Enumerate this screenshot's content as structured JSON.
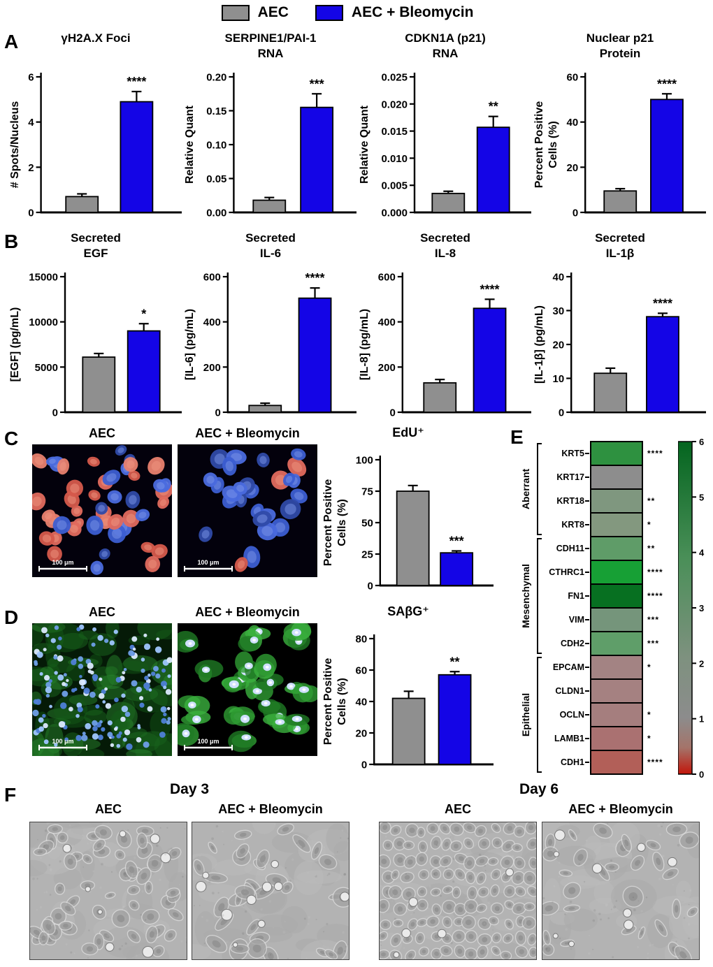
{
  "figure": {
    "panel_labels": {
      "A": "A",
      "B": "B",
      "C": "C",
      "D": "D",
      "E": "E",
      "F": "F"
    }
  },
  "legend": {
    "items": [
      {
        "key": "aec",
        "label": "AEC"
      },
      {
        "key": "bleo",
        "label": "AEC + Bleomycin"
      }
    ]
  },
  "colors": {
    "aec": "#8f8f8f",
    "bleo": "#1405e6",
    "axis": "#000000"
  },
  "chart_data": [
    {
      "id": "gh2ax-foci",
      "panel": "A",
      "type": "bar",
      "title_lines": [
        "γH2A.X Foci"
      ],
      "ylabel_lines": [
        "# Spots/Nucleus"
      ],
      "categories": [
        "AEC",
        "AEC + Bleomycin"
      ],
      "values": [
        0.7,
        4.9
      ],
      "errors": [
        0.12,
        0.45
      ],
      "significance": "****",
      "ylim": [
        0,
        6
      ],
      "yticks": [
        0,
        2,
        4,
        6
      ],
      "ytick_labels": [
        "0",
        "2",
        "4",
        "6"
      ]
    },
    {
      "id": "serpine1-pai1-rna",
      "panel": "A",
      "type": "bar",
      "title_lines": [
        "SERPINE1/PAI-1",
        "RNA"
      ],
      "ylabel_lines": [
        "Relative Quant"
      ],
      "categories": [
        "AEC",
        "AEC + Bleomycin"
      ],
      "values": [
        0.018,
        0.155
      ],
      "errors": [
        0.004,
        0.02
      ],
      "significance": "***",
      "ylim": [
        0,
        0.2
      ],
      "yticks": [
        0,
        0.05,
        0.1,
        0.15,
        0.2
      ],
      "ytick_labels": [
        "0.00",
        "0.05",
        "0.10",
        "0.15",
        "0.20"
      ]
    },
    {
      "id": "cdkn1a-p21-rna",
      "panel": "A",
      "type": "bar",
      "title_lines": [
        "CDKN1A (p21)",
        "RNA"
      ],
      "ylabel_lines": [
        "Relative Quant"
      ],
      "categories": [
        "AEC",
        "AEC + Bleomycin"
      ],
      "values": [
        0.0035,
        0.0157
      ],
      "errors": [
        0.0004,
        0.002
      ],
      "significance": "**",
      "ylim": [
        0,
        0.025
      ],
      "yticks": [
        0,
        0.005,
        0.01,
        0.015,
        0.02,
        0.025
      ],
      "ytick_labels": [
        "0.000",
        "0.005",
        "0.010",
        "0.015",
        "0.020",
        "0.025"
      ]
    },
    {
      "id": "nuclear-p21-protein",
      "panel": "A",
      "type": "bar",
      "title_lines": [
        "Nuclear p21",
        "Protein"
      ],
      "ylabel_lines": [
        "Percent Positive",
        "Cells (%)"
      ],
      "categories": [
        "AEC",
        "AEC + Bleomycin"
      ],
      "values": [
        9.5,
        50
      ],
      "errors": [
        1,
        2.5
      ],
      "significance": "****",
      "ylim": [
        0,
        60
      ],
      "yticks": [
        0,
        20,
        40,
        60
      ],
      "ytick_labels": [
        "0",
        "20",
        "40",
        "60"
      ]
    },
    {
      "id": "secreted-egf",
      "panel": "B",
      "type": "bar",
      "title_lines": [
        "Secreted",
        "EGF"
      ],
      "ylabel_lines": [
        "[EGF] (pg/mL)"
      ],
      "categories": [
        "AEC",
        "AEC + Bleomycin"
      ],
      "values": [
        6100,
        9000
      ],
      "errors": [
        400,
        800
      ],
      "significance": "*",
      "ylim": [
        0,
        15000
      ],
      "yticks": [
        0,
        5000,
        10000,
        15000
      ],
      "ytick_labels": [
        "0",
        "5000",
        "10000",
        "15000"
      ]
    },
    {
      "id": "secreted-il6",
      "panel": "B",
      "type": "bar",
      "title_lines": [
        "Secreted",
        "IL-6"
      ],
      "ylabel_lines": [
        "[IL-6] (pg/mL)"
      ],
      "categories": [
        "AEC",
        "AEC + Bleomycin"
      ],
      "values": [
        30,
        505
      ],
      "errors": [
        10,
        45
      ],
      "significance": "****",
      "ylim": [
        0,
        600
      ],
      "yticks": [
        0,
        200,
        400,
        600
      ],
      "ytick_labels": [
        "0",
        "200",
        "400",
        "600"
      ]
    },
    {
      "id": "secreted-il8",
      "panel": "B",
      "type": "bar",
      "title_lines": [
        "Secreted",
        "IL-8"
      ],
      "ylabel_lines": [
        "[IL-8] (pg/mL)"
      ],
      "categories": [
        "AEC",
        "AEC + Bleomycin"
      ],
      "values": [
        130,
        460
      ],
      "errors": [
        15,
        40
      ],
      "significance": "****",
      "ylim": [
        0,
        600
      ],
      "yticks": [
        0,
        200,
        400,
        600
      ],
      "ytick_labels": [
        "0",
        "200",
        "400",
        "600"
      ]
    },
    {
      "id": "secreted-il1b",
      "panel": "B",
      "type": "bar",
      "title_lines": [
        "Secreted",
        "IL-1β"
      ],
      "ylabel_lines": [
        "[IL-1β] (pg/mL)"
      ],
      "categories": [
        "AEC",
        "AEC + Bleomycin"
      ],
      "values": [
        11.5,
        28.2
      ],
      "errors": [
        1.5,
        1
      ],
      "significance": "****",
      "ylim": [
        0,
        40
      ],
      "yticks": [
        0,
        10,
        20,
        30,
        40
      ],
      "ytick_labels": [
        "0",
        "10",
        "20",
        "30",
        "40"
      ]
    },
    {
      "id": "edu-positive",
      "panel": "C",
      "type": "bar",
      "title_lines": [
        "EdU⁺"
      ],
      "ylabel_lines": [
        "Percent Positive",
        "Cells (%)"
      ],
      "categories": [
        "AEC",
        "AEC + Bleomycin"
      ],
      "values": [
        75,
        26
      ],
      "errors": [
        4.5,
        1.5
      ],
      "significance": "***",
      "ylim": [
        0,
        100
      ],
      "yticks": [
        0,
        25,
        50,
        75,
        100
      ],
      "ytick_labels": [
        "0",
        "25",
        "50",
        "75",
        "100"
      ]
    },
    {
      "id": "sabg-positive",
      "panel": "D",
      "type": "bar",
      "title_lines": [
        "SAβG⁺"
      ],
      "ylabel_lines": [
        "Percent Positive",
        "Cells (%)"
      ],
      "categories": [
        "AEC",
        "AEC + Bleomycin"
      ],
      "values": [
        42,
        57
      ],
      "errors": [
        4.5,
        2
      ],
      "significance": "**",
      "ylim": [
        0,
        80
      ],
      "yticks": [
        0,
        20,
        40,
        60,
        80
      ],
      "ytick_labels": [
        "0",
        "20",
        "40",
        "60",
        "80"
      ]
    },
    {
      "id": "emt-heatmap",
      "panel": "E",
      "type": "heatmap",
      "groups": [
        {
          "name": "Aberrant",
          "genes": [
            "KRT5",
            "KRT17",
            "KRT18",
            "KRT8"
          ]
        },
        {
          "name": "Mesenchymal",
          "genes": [
            "CDH11",
            "CTHRC1",
            "FN1",
            "VIM",
            "CDH2"
          ]
        },
        {
          "name": "Epithelial",
          "genes": [
            "EPCAM",
            "CLDN1",
            "OCLN",
            "LAMB1",
            "CDH1"
          ]
        }
      ],
      "rows": [
        {
          "gene": "KRT5",
          "value": 3.5,
          "color": "#2e9140",
          "sig": "****"
        },
        {
          "gene": "KRT17",
          "value": 1.0,
          "color": "#8d8d8d",
          "sig": ""
        },
        {
          "gene": "KRT18",
          "value": 1.4,
          "color": "#7f977f",
          "sig": "**"
        },
        {
          "gene": "KRT8",
          "value": 1.3,
          "color": "#83987f",
          "sig": "*"
        },
        {
          "gene": "CDH11",
          "value": 2.2,
          "color": "#5f9c68",
          "sig": "**"
        },
        {
          "gene": "CTHRC1",
          "value": 4.8,
          "color": "#17a035",
          "sig": "****"
        },
        {
          "gene": "FN1",
          "value": 6.0,
          "color": "#077021",
          "sig": "****"
        },
        {
          "gene": "VIM",
          "value": 1.8,
          "color": "#75957b",
          "sig": "***"
        },
        {
          "gene": "CDH2",
          "value": 2.2,
          "color": "#5f9e69",
          "sig": "***"
        },
        {
          "gene": "EPCAM",
          "value": 0.8,
          "color": "#a38383",
          "sig": "*"
        },
        {
          "gene": "CLDN1",
          "value": 0.8,
          "color": "#a58181",
          "sig": ""
        },
        {
          "gene": "OCLN",
          "value": 0.75,
          "color": "#a57e7e",
          "sig": "*"
        },
        {
          "gene": "LAMB1",
          "value": 0.6,
          "color": "#aa7171",
          "sig": "*"
        },
        {
          "gene": "CDH1",
          "value": 0.45,
          "color": "#b25f58",
          "sig": "****"
        }
      ],
      "colorbar": {
        "min": 0,
        "max": 6,
        "ticks": [
          "6",
          "5",
          "4",
          "3",
          "2",
          "1",
          "0"
        ],
        "gradient": [
          [
            "0%",
            "#04651f"
          ],
          [
            "35%",
            "#4a8f58"
          ],
          [
            "65%",
            "#7e917f"
          ],
          [
            "83%",
            "#8c8c8c"
          ],
          [
            "92%",
            "#a4746a"
          ],
          [
            "100%",
            "#c2150a"
          ]
        ]
      }
    }
  ],
  "panelC": {
    "images": [
      {
        "label": "AEC",
        "scale_text": "100 μm"
      },
      {
        "label": "AEC + Bleomycin",
        "scale_text": "100 μm"
      }
    ]
  },
  "panelD": {
    "images": [
      {
        "label": "AEC",
        "scale_text": "100 μm"
      },
      {
        "label": "AEC + Bleomycin",
        "scale_text": "100 μm"
      }
    ]
  },
  "panelF": {
    "day_titles": [
      "Day 3",
      "Day 6"
    ],
    "image_labels": [
      "AEC",
      "AEC + Bleomycin",
      "AEC",
      "AEC + Bleomycin"
    ]
  }
}
